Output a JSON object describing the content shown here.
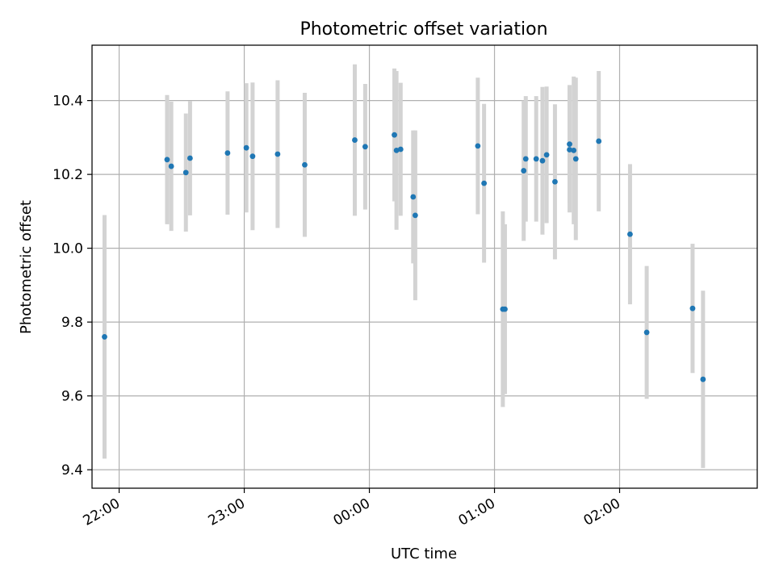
{
  "chart_data": {
    "type": "scatter",
    "title": "Photometric offset variation",
    "xlabel": "UTC time",
    "ylabel": "Photometric offset",
    "x_axis": {
      "kind": "time",
      "unit": "hours_utc",
      "range": [
        "21:47",
        "03:06"
      ],
      "ticks": [
        "22:00",
        "23:00",
        "00:00",
        "01:00",
        "02:00"
      ],
      "tick_label_rotation": "slanted"
    },
    "ylim": [
      9.35,
      10.55
    ],
    "yticks": [
      "9.4",
      "9.6",
      "9.8",
      "10.0",
      "10.2",
      "10.4"
    ],
    "grid": true,
    "legend": "none",
    "colors": {
      "marker": "#1f77b4",
      "errorbar": "#d3d3d3",
      "grid": "#b0b0b0",
      "axes": "#000000"
    },
    "points": [
      {
        "x": "21:53",
        "y": 9.76,
        "yerr": 0.33
      },
      {
        "x": "22:23",
        "y": 10.24,
        "yerr": 0.175
      },
      {
        "x": "22:25",
        "y": 10.222,
        "yerr": 0.175
      },
      {
        "x": "22:32",
        "y": 10.205,
        "yerr": 0.16
      },
      {
        "x": "22:34",
        "y": 10.244,
        "yerr": 0.155
      },
      {
        "x": "22:52",
        "y": 10.258,
        "yerr": 0.167
      },
      {
        "x": "23:01",
        "y": 10.272,
        "yerr": 0.175
      },
      {
        "x": "23:04",
        "y": 10.249,
        "yerr": 0.2
      },
      {
        "x": "23:16",
        "y": 10.255,
        "yerr": 0.2
      },
      {
        "x": "23:29",
        "y": 10.226,
        "yerr": 0.195
      },
      {
        "x": "23:53",
        "y": 10.293,
        "yerr": 0.205
      },
      {
        "x": "23:58",
        "y": 10.275,
        "yerr": 0.17
      },
      {
        "x": "00:12",
        "y": 10.307,
        "yerr": 0.18
      },
      {
        "x": "00:13",
        "y": 10.265,
        "yerr": 0.215
      },
      {
        "x": "00:15",
        "y": 10.268,
        "yerr": 0.18
      },
      {
        "x": "00:21",
        "y": 10.139,
        "yerr": 0.18
      },
      {
        "x": "00:22",
        "y": 10.089,
        "yerr": 0.23
      },
      {
        "x": "00:52",
        "y": 10.277,
        "yerr": 0.185
      },
      {
        "x": "00:55",
        "y": 10.176,
        "yerr": 0.215
      },
      {
        "x": "01:04",
        "y": 9.835,
        "yerr": 0.265
      },
      {
        "x": "01:05",
        "y": 9.835,
        "yerr": 0.23
      },
      {
        "x": "01:14",
        "y": 10.21,
        "yerr": 0.19
      },
      {
        "x": "01:15",
        "y": 10.242,
        "yerr": 0.17
      },
      {
        "x": "01:20",
        "y": 10.242,
        "yerr": 0.17
      },
      {
        "x": "01:23",
        "y": 10.237,
        "yerr": 0.2
      },
      {
        "x": "01:25",
        "y": 10.253,
        "yerr": 0.185
      },
      {
        "x": "01:29",
        "y": 10.18,
        "yerr": 0.21
      },
      {
        "x": "01:36",
        "y": 10.282,
        "yerr": 0.16
      },
      {
        "x": "01:36",
        "y": 10.267,
        "yerr": 0.17
      },
      {
        "x": "01:38",
        "y": 10.265,
        "yerr": 0.2
      },
      {
        "x": "01:39",
        "y": 10.242,
        "yerr": 0.22
      },
      {
        "x": "01:50",
        "y": 10.29,
        "yerr": 0.19
      },
      {
        "x": "02:05",
        "y": 10.038,
        "yerr": 0.19
      },
      {
        "x": "02:13",
        "y": 9.772,
        "yerr": 0.18
      },
      {
        "x": "02:35",
        "y": 9.837,
        "yerr": 0.175
      },
      {
        "x": "02:40",
        "y": 9.645,
        "yerr": 0.24
      }
    ]
  }
}
